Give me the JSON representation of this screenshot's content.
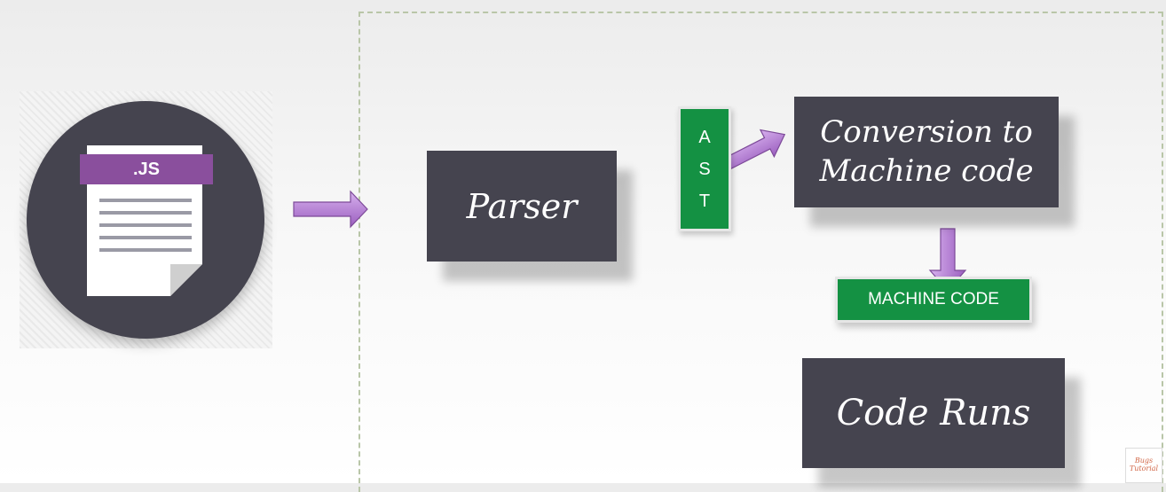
{
  "js_file_icon": {
    "label": ".JS",
    "icon": "js-file-icon"
  },
  "boxes": {
    "parser": "Parser",
    "conversion_line1": "Conversion to",
    "conversion_line2": "Machine code",
    "code_runs": "Code Runs"
  },
  "ast": {
    "letters": [
      "A",
      "S",
      "T"
    ]
  },
  "machine_code": "MACHINE CODE",
  "watermark": {
    "line1": "Bugs",
    "line2": "Tutorial"
  },
  "colors": {
    "dark_box": "#45444f",
    "green": "#149143",
    "arrow_purple": "#b47fd2",
    "frame_dashed": "#b9c6a8"
  }
}
